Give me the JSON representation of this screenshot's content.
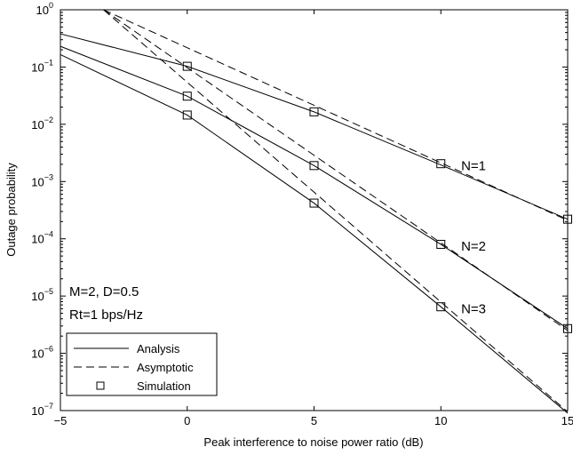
{
  "chart_data": {
    "type": "line",
    "xlabel": "Peak interference to noise power ratio (dB)",
    "ylabel": "Outage probability",
    "xlim": [
      -5,
      15
    ],
    "ylim": [
      1e-07,
      1
    ],
    "yscale": "log",
    "grid": false,
    "xticks": [
      "−5",
      "0",
      "5",
      "10",
      "15"
    ],
    "yticks": [
      {
        "base": "10",
        "exp": "−7",
        "value": 1e-07
      },
      {
        "base": "10",
        "exp": "−6",
        "value": 1e-06
      },
      {
        "base": "10",
        "exp": "−5",
        "value": 1e-05
      },
      {
        "base": "10",
        "exp": "−4",
        "value": 0.0001
      },
      {
        "base": "10",
        "exp": "−3",
        "value": 0.001
      },
      {
        "base": "10",
        "exp": "−2",
        "value": 0.01
      },
      {
        "base": "10",
        "exp": "−1",
        "value": 0.1
      },
      {
        "base": "10",
        "exp": "0",
        "value": 1
      }
    ],
    "series": [
      {
        "curve": "N=1",
        "style": "analysis",
        "x": [
          -5,
          0,
          5,
          10,
          15
        ],
        "y": [
          0.38,
          0.103,
          0.0165,
          0.00195,
          0.00022
        ]
      },
      {
        "curve": "N=2",
        "style": "analysis",
        "x": [
          -5,
          0,
          5,
          10,
          15
        ],
        "y": [
          0.23,
          0.031,
          0.0019,
          8e-05,
          2.7e-06
        ]
      },
      {
        "curve": "N=3",
        "style": "analysis",
        "x": [
          -5,
          0,
          5,
          10,
          15
        ],
        "y": [
          0.165,
          0.0145,
          0.00042,
          6.5e-06,
          9e-08
        ]
      },
      {
        "curve": "N=1",
        "style": "asymptotic",
        "x": [
          -3.3,
          15
        ],
        "y": [
          1.0,
          0.00021
        ]
      },
      {
        "curve": "N=2",
        "style": "asymptotic",
        "x": [
          -3.3,
          15
        ],
        "y": [
          1.0,
          2.5e-06
        ]
      },
      {
        "curve": "N=3",
        "style": "asymptotic",
        "x": [
          -3.3,
          15
        ],
        "y": [
          1.0,
          9.5e-08
        ]
      },
      {
        "curve": "N=1",
        "style": "simulation",
        "x": [
          0,
          5,
          10,
          15
        ],
        "y": [
          0.103,
          0.0165,
          0.00205,
          0.00022
        ]
      },
      {
        "curve": "N=2",
        "style": "simulation",
        "x": [
          0,
          5,
          10,
          15
        ],
        "y": [
          0.031,
          0.0019,
          8e-05,
          2.7e-06
        ]
      },
      {
        "curve": "N=3",
        "style": "simulation",
        "x": [
          0,
          5,
          10
        ],
        "y": [
          0.0145,
          0.00042,
          6.5e-06
        ]
      }
    ],
    "curve_labels": [
      {
        "text": "N=1",
        "x": 10.8,
        "y": 0.0019
      },
      {
        "text": "N=2",
        "x": 10.8,
        "y": 7.5e-05
      },
      {
        "text": "N=3",
        "x": 10.8,
        "y": 6e-06
      }
    ],
    "annotations": [
      "M=2, D=0.5",
      "Rt=1 bps/Hz"
    ],
    "legend": {
      "placement": "bottom-left",
      "entries": [
        {
          "label": "Analysis",
          "style": "solid"
        },
        {
          "label": "Asymptotic",
          "style": "dashed"
        },
        {
          "label": "Simulation",
          "style": "square-marker"
        }
      ]
    }
  }
}
